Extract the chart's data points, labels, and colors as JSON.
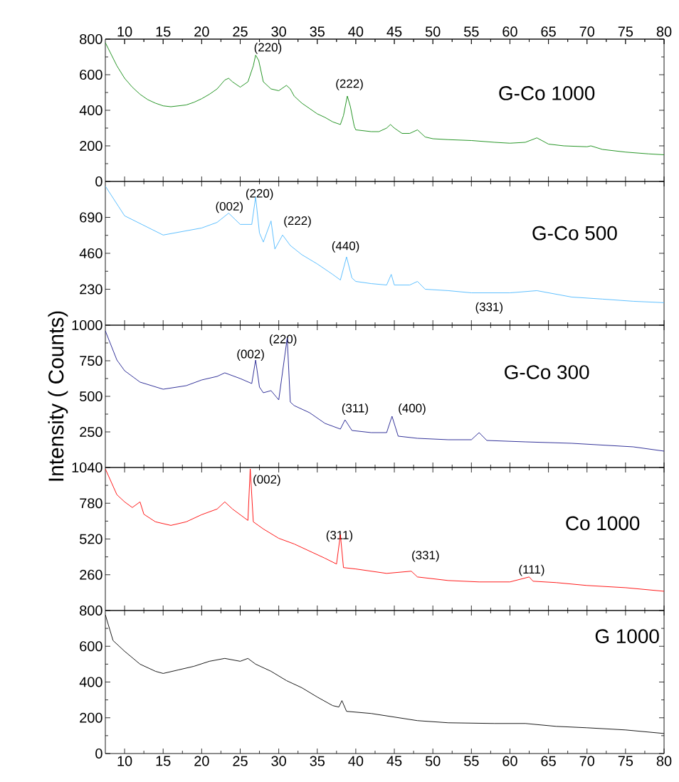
{
  "chart_data": [
    {
      "type": "line",
      "xlim": [
        7.5,
        80
      ],
      "xticks": [
        10,
        15,
        20,
        25,
        30,
        35,
        40,
        45,
        50,
        55,
        60,
        65,
        70,
        75,
        80
      ],
      "x2lim": [
        7.5,
        80
      ],
      "x2ticks": [
        10,
        15,
        20,
        25,
        30,
        35,
        40,
        45,
        50,
        55,
        60,
        65,
        70,
        75,
        80
      ],
      "ylim": [
        0,
        800
      ],
      "yticks": [
        0,
        200,
        400,
        600,
        800
      ],
      "tick_labels": "y",
      "legend": false,
      "marker": "none",
      "line_style": "solid",
      "series": [
        {
          "name": "G-Co 1000",
          "color": "#0f8a0f",
          "x": [
            7.5,
            9,
            10,
            11,
            12,
            13,
            14,
            15,
            16,
            17,
            18,
            19,
            20,
            21,
            22,
            23,
            23.5,
            24,
            25,
            26,
            26.7,
            27,
            27.4,
            28,
            29,
            30,
            31,
            31.5,
            32,
            33,
            34,
            35,
            36,
            37,
            38,
            38.4,
            38.9,
            39.3,
            39.8,
            40,
            42,
            43,
            44,
            44.5,
            45,
            46,
            47,
            48,
            48.5,
            49,
            50,
            52,
            55,
            58,
            60,
            62,
            63.5,
            65,
            67,
            70,
            70.5,
            72,
            75,
            78,
            80
          ],
          "values": [
            780,
            650,
            580,
            530,
            490,
            460,
            440,
            425,
            420,
            425,
            430,
            445,
            465,
            490,
            520,
            570,
            580,
            560,
            530,
            560,
            650,
            710,
            680,
            560,
            520,
            510,
            540,
            520,
            480,
            440,
            410,
            380,
            360,
            335,
            320,
            370,
            480,
            420,
            310,
            290,
            280,
            280,
            300,
            320,
            300,
            270,
            270,
            290,
            270,
            250,
            240,
            235,
            230,
            220,
            215,
            220,
            245,
            210,
            200,
            195,
            200,
            180,
            165,
            155,
            150
          ]
        }
      ],
      "annotations": [
        "(220)",
        "(222)"
      ]
    },
    {
      "type": "line",
      "xlim": [
        7.5,
        80
      ],
      "xticks": [
        10,
        15,
        20,
        25,
        30,
        35,
        40,
        45,
        50,
        55,
        60,
        65,
        70,
        75,
        80
      ],
      "ylim": [
        0,
        920
      ],
      "yticks": [
        230,
        460,
        690
      ],
      "tick_labels": "y",
      "legend": false,
      "marker": "none",
      "line_style": "solid",
      "series": [
        {
          "name": "G-Co 500",
          "color": "#4db8ff",
          "x": [
            7.5,
            10,
            15,
            20,
            22,
            23.5,
            25,
            26.5,
            27,
            27.5,
            28,
            29,
            29.5,
            30.5,
            31.5,
            33,
            35,
            37,
            38,
            38.8,
            39.5,
            40,
            42,
            44,
            44.6,
            45,
            47,
            48,
            49,
            52,
            55,
            60,
            63.5,
            68,
            72,
            76,
            80
          ],
          "values": [
            890,
            700,
            577,
            622,
            658,
            717,
            645,
            645,
            820,
            590,
            532,
            667,
            487,
            577,
            510,
            451,
            392,
            325,
            289,
            437,
            302,
            280,
            266,
            257,
            325,
            257,
            257,
            280,
            230,
            221,
            207,
            207,
            221,
            180,
            167,
            153,
            144
          ]
        }
      ],
      "annotations": [
        "(002)",
        "(220)",
        "(222)",
        "(440)",
        "(331)"
      ]
    },
    {
      "type": "line",
      "xlim": [
        7.5,
        80
      ],
      "xticks": [
        10,
        15,
        20,
        25,
        30,
        35,
        40,
        45,
        50,
        55,
        60,
        65,
        70,
        75,
        80
      ],
      "ylim": [
        0,
        1000
      ],
      "yticks": [
        250,
        500,
        750,
        1000
      ],
      "ylabel": "Intensity ( Counts)",
      "tick_labels": "y",
      "legend": false,
      "marker": "none",
      "line_style": "solid",
      "series": [
        {
          "name": "G-Co 300",
          "color": "#1c1c8e",
          "x": [
            7.5,
            9,
            10,
            12,
            15,
            18,
            20,
            22,
            23,
            25,
            26.5,
            27,
            27.5,
            28,
            29,
            30,
            31.1,
            31.5,
            32,
            34,
            36,
            38,
            38.6,
            39.5,
            42,
            44,
            44.7,
            45.5,
            48,
            52,
            55,
            56,
            57,
            62,
            68,
            76,
            80
          ],
          "values": [
            960,
            755,
            680,
            600,
            550,
            575,
            615,
            640,
            665,
            625,
            590,
            755,
            565,
            525,
            540,
            475,
            910,
            460,
            435,
            385,
            310,
            270,
            335,
            260,
            245,
            245,
            360,
            220,
            205,
            195,
            195,
            245,
            190,
            180,
            170,
            145,
            115
          ]
        }
      ],
      "annotations": [
        "(002)",
        "(220)",
        "(311)",
        "(400)"
      ]
    },
    {
      "type": "line",
      "xlim": [
        7.5,
        80
      ],
      "xticks": [
        10,
        15,
        20,
        25,
        30,
        35,
        40,
        45,
        50,
        55,
        60,
        65,
        70,
        75,
        80
      ],
      "ylim": [
        0,
        1040
      ],
      "yticks": [
        260,
        520,
        780,
        1040
      ],
      "tick_labels": "y",
      "legend": false,
      "marker": "none",
      "line_style": "solid",
      "series": [
        {
          "name": "Co 1000",
          "color": "#ff0000",
          "x": [
            7.5,
            9,
            10,
            11,
            12,
            12.5,
            14,
            16,
            18,
            20,
            22,
            23,
            24,
            26,
            26.3,
            26.7,
            28,
            30,
            32,
            34,
            36,
            37.5,
            38,
            38.4,
            40,
            44,
            47.2,
            48,
            52,
            56,
            60,
            62.5,
            63,
            66,
            70,
            75,
            80
          ],
          "values": [
            1030,
            842,
            790,
            749,
            790,
            700,
            645,
            619,
            645,
            697,
            738,
            790,
            738,
            655,
            1030,
            645,
            593,
            525,
            484,
            432,
            380,
            338,
            551,
            312,
            302,
            270,
            286,
            244,
            218,
            208,
            208,
            244,
            213,
            203,
            182,
            166,
            140
          ]
        }
      ],
      "annotations": [
        "(002)",
        "(311)",
        "(331)",
        "(111)"
      ]
    },
    {
      "type": "line",
      "xlim": [
        7.5,
        80
      ],
      "xticks": [
        10,
        15,
        20,
        25,
        30,
        35,
        40,
        45,
        50,
        55,
        60,
        65,
        70,
        75,
        80
      ],
      "ylim": [
        0,
        800
      ],
      "yticks": [
        0,
        200,
        400,
        600,
        800
      ],
      "legend": "top right",
      "marker": "none",
      "line_style": "solid",
      "series": [
        {
          "name": "G 1000",
          "color": "#000000",
          "x": [
            7.5,
            8.5,
            10,
            12,
            14,
            15,
            17,
            19,
            21,
            23,
            25,
            26,
            27,
            29,
            31,
            33,
            35,
            37,
            37.8,
            38.2,
            38.8,
            42,
            45,
            48,
            52,
            58,
            62,
            66,
            70,
            75,
            80
          ],
          "values": [
            776,
            632,
            572,
            500,
            460,
            448,
            468,
            488,
            516,
            532,
            516,
            532,
            500,
            460,
            408,
            368,
            316,
            268,
            260,
            296,
            236,
            224,
            204,
            184,
            172,
            168,
            168,
            152,
            144,
            132,
            112
          ]
        }
      ]
    }
  ]
}
